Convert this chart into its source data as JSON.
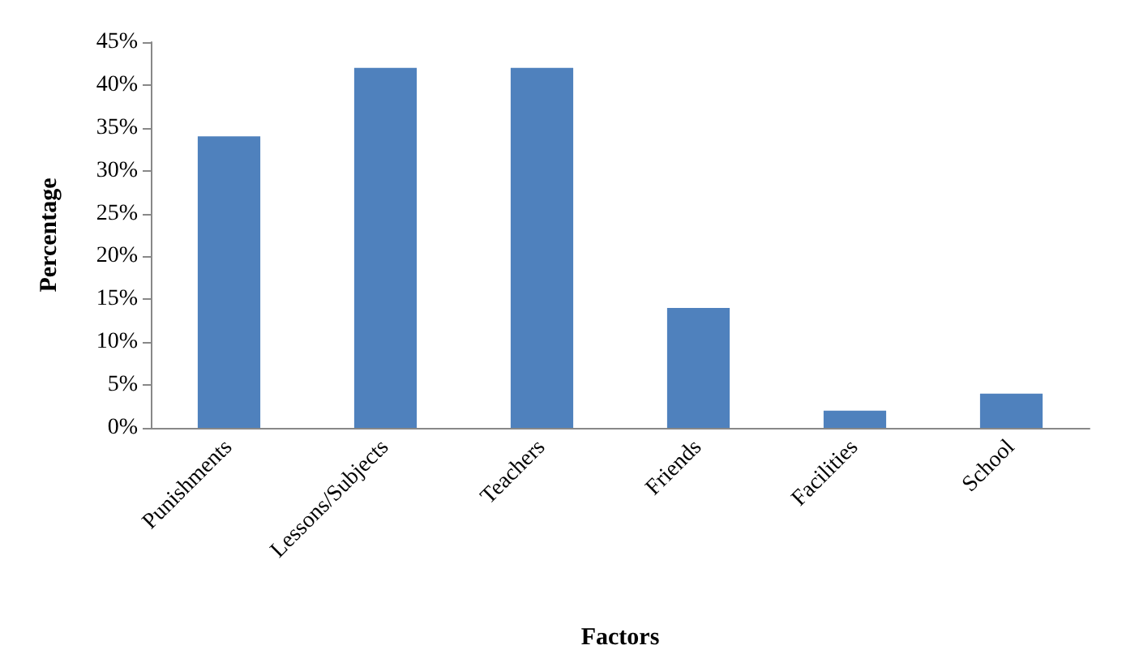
{
  "chart_data": {
    "type": "bar",
    "xlabel": "Factors",
    "ylabel": "Percentage",
    "categories": [
      "Punishments",
      "Lessons/Subjects",
      "Teachers",
      "Friends",
      "Facilities",
      "School"
    ],
    "values": [
      34,
      42,
      42,
      14,
      2,
      4
    ],
    "color": "#4f81bd",
    "ylim": [
      0,
      45
    ],
    "yticks": [
      {
        "value": 0,
        "label": "0%"
      },
      {
        "value": 5,
        "label": "5%"
      },
      {
        "value": 10,
        "label": "10%"
      },
      {
        "value": 15,
        "label": "15%"
      },
      {
        "value": 20,
        "label": "20%"
      },
      {
        "value": 25,
        "label": "25%"
      },
      {
        "value": 30,
        "label": "30%"
      },
      {
        "value": 35,
        "label": "35%"
      },
      {
        "value": 40,
        "label": "40%"
      },
      {
        "value": 45,
        "label": "45%"
      }
    ],
    "grid": false
  }
}
